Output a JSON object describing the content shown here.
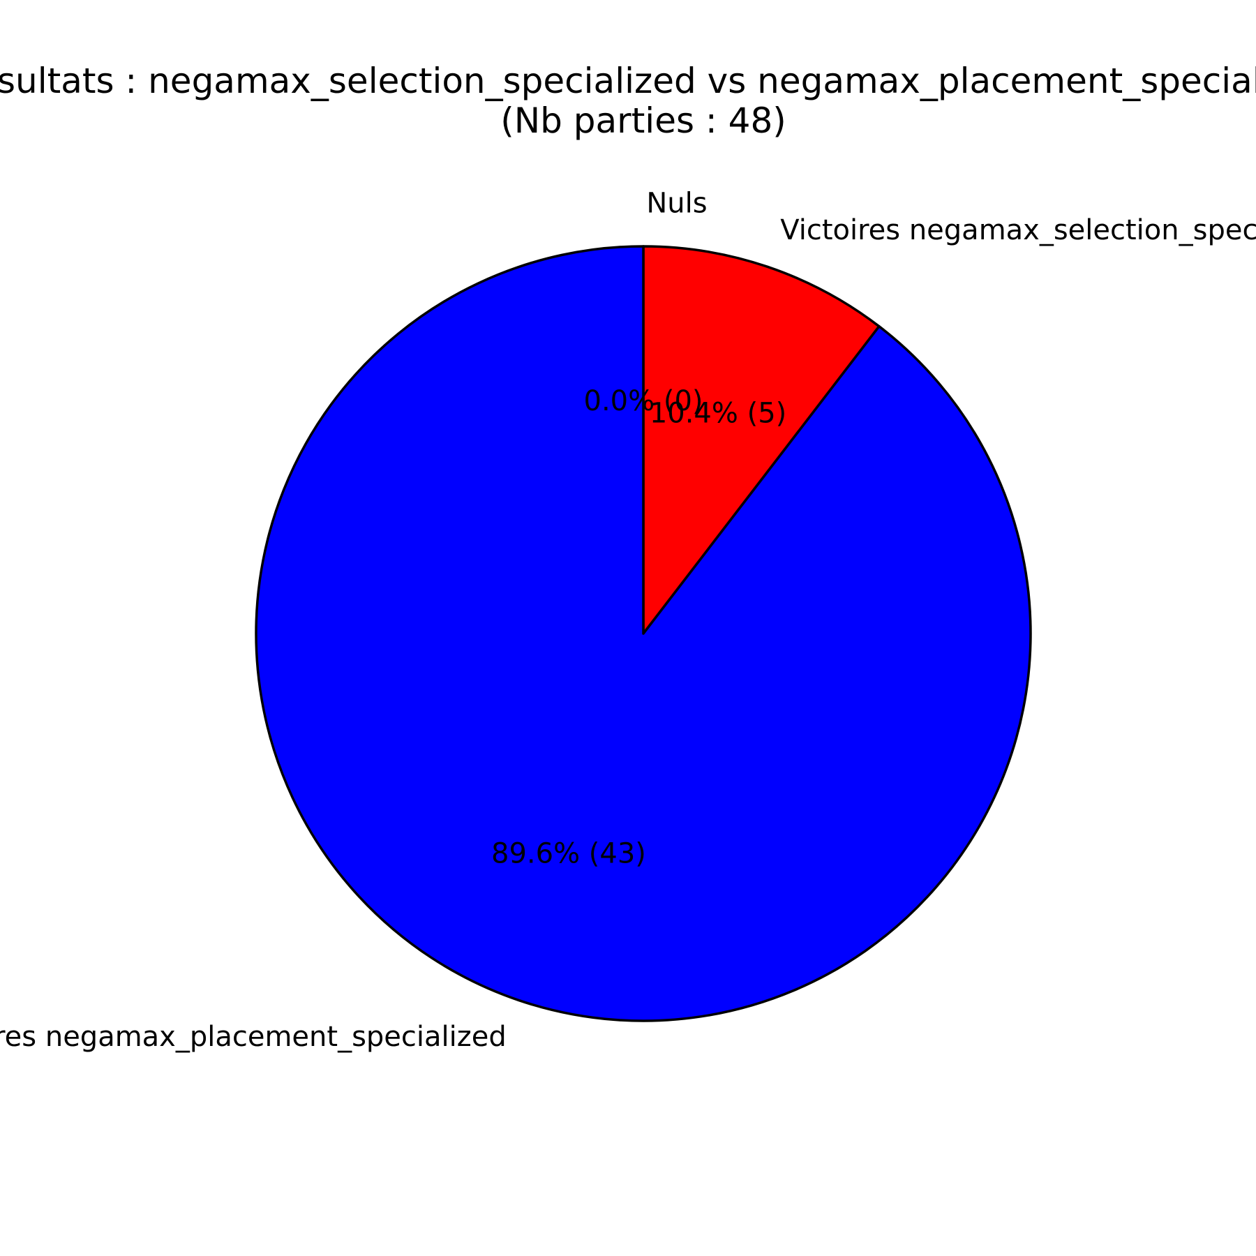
{
  "chart_data": {
    "type": "pie",
    "title": "Résultats : negamax_selection_specialized vs negamax_placement_specialized",
    "subtitle": "(Nb parties : 48)",
    "slices": [
      {
        "label": "Nuls",
        "value": 0,
        "percent_label": "0.0% (0)",
        "color": "#ff0000"
      },
      {
        "label": "Victoires negamax_selection_specialized",
        "value": 5,
        "percent_label": "10.4% (5)",
        "color": "#ff0000"
      },
      {
        "label": "Victoires negamax_placement_specialized",
        "value": 43,
        "percent_label": "89.6% (43)",
        "color": "#0000ff"
      }
    ],
    "start_angle": "top",
    "direction": "clockwise",
    "edge_color": "#000000",
    "legend": "none"
  }
}
